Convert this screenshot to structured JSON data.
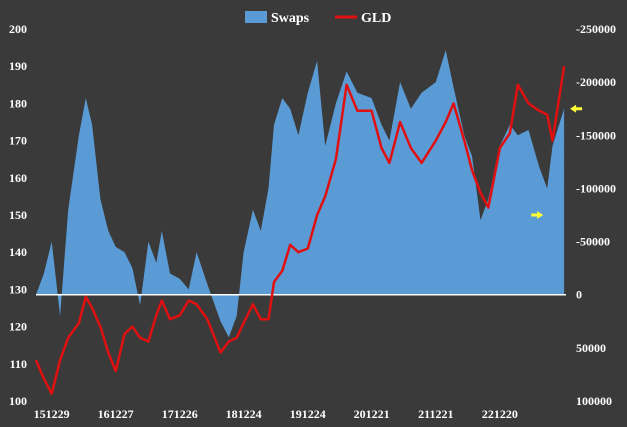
{
  "chart_data": {
    "type": "area",
    "legend_position": "top-center",
    "grid": false,
    "background_color": "#3a3a3a",
    "series": [
      {
        "name": "Swaps",
        "kind": "area",
        "axis": "right",
        "color": "#5b9bd5",
        "points": [
          [
            "2015-10-01",
            0
          ],
          [
            "2015-11-15",
            -20000
          ],
          [
            "2015-12-29",
            -50000
          ],
          [
            "2016-02-15",
            20000
          ],
          [
            "2016-04-01",
            -80000
          ],
          [
            "2016-06-01",
            -150000
          ],
          [
            "2016-07-10",
            -185000
          ],
          [
            "2016-08-15",
            -160000
          ],
          [
            "2016-10-01",
            -90000
          ],
          [
            "2016-11-15",
            -60000
          ],
          [
            "2016-12-27",
            -45000
          ],
          [
            "2017-02-15",
            -40000
          ],
          [
            "2017-04-01",
            -25000
          ],
          [
            "2017-05-15",
            10000
          ],
          [
            "2017-07-01",
            -50000
          ],
          [
            "2017-08-15",
            -30000
          ],
          [
            "2017-09-15",
            -60000
          ],
          [
            "2017-11-01",
            -20000
          ],
          [
            "2017-12-26",
            -15000
          ],
          [
            "2018-02-15",
            -5000
          ],
          [
            "2018-04-01",
            -40000
          ],
          [
            "2018-06-01",
            -10000
          ],
          [
            "2018-08-15",
            25000
          ],
          [
            "2018-10-01",
            40000
          ],
          [
            "2018-11-15",
            20000
          ],
          [
            "2018-12-24",
            -40000
          ],
          [
            "2019-02-15",
            -80000
          ],
          [
            "2019-04-01",
            -60000
          ],
          [
            "2019-05-15",
            -100000
          ],
          [
            "2019-06-15",
            -160000
          ],
          [
            "2019-08-01",
            -185000
          ],
          [
            "2019-09-15",
            -175000
          ],
          [
            "2019-11-01",
            -150000
          ],
          [
            "2019-12-24",
            -190000
          ],
          [
            "2020-02-15",
            -220000
          ],
          [
            "2020-04-01",
            -140000
          ],
          [
            "2020-06-01",
            -180000
          ],
          [
            "2020-08-01",
            -210000
          ],
          [
            "2020-10-01",
            -190000
          ],
          [
            "2020-12-21",
            -185000
          ],
          [
            "2021-02-15",
            -160000
          ],
          [
            "2021-04-01",
            -145000
          ],
          [
            "2021-06-01",
            -200000
          ],
          [
            "2021-08-01",
            -175000
          ],
          [
            "2021-10-01",
            -190000
          ],
          [
            "2021-12-21",
            -200000
          ],
          [
            "2022-02-15",
            -230000
          ],
          [
            "2022-04-01",
            -195000
          ],
          [
            "2022-06-01",
            -150000
          ],
          [
            "2022-07-15",
            -130000
          ],
          [
            "2022-09-01",
            -70000
          ],
          [
            "2022-10-15",
            -90000
          ],
          [
            "2022-12-20",
            -140000
          ],
          [
            "2023-02-15",
            -160000
          ],
          [
            "2023-04-01",
            -150000
          ],
          [
            "2023-06-01",
            -155000
          ],
          [
            "2023-08-01",
            -120000
          ],
          [
            "2023-09-15",
            -100000
          ],
          [
            "2023-10-15",
            -140000
          ],
          [
            "2023-12-20",
            -175000
          ]
        ]
      },
      {
        "name": "GLD",
        "kind": "line",
        "axis": "left",
        "color": "#e01010",
        "points": [
          [
            "2015-10-01",
            111
          ],
          [
            "2015-11-15",
            106
          ],
          [
            "2015-12-29",
            102
          ],
          [
            "2016-02-15",
            111
          ],
          [
            "2016-04-01",
            117
          ],
          [
            "2016-06-01",
            121
          ],
          [
            "2016-07-10",
            128
          ],
          [
            "2016-08-15",
            125
          ],
          [
            "2016-10-01",
            120
          ],
          [
            "2016-11-15",
            113
          ],
          [
            "2016-12-27",
            108
          ],
          [
            "2017-02-15",
            118
          ],
          [
            "2017-04-01",
            120
          ],
          [
            "2017-05-15",
            117
          ],
          [
            "2017-07-01",
            116
          ],
          [
            "2017-08-15",
            123
          ],
          [
            "2017-09-15",
            127
          ],
          [
            "2017-11-01",
            122
          ],
          [
            "2017-12-26",
            123
          ],
          [
            "2018-02-15",
            127
          ],
          [
            "2018-04-01",
            126
          ],
          [
            "2018-06-01",
            122
          ],
          [
            "2018-08-15",
            113
          ],
          [
            "2018-10-01",
            116
          ],
          [
            "2018-11-15",
            117
          ],
          [
            "2018-12-24",
            121
          ],
          [
            "2019-02-15",
            126
          ],
          [
            "2019-04-01",
            122
          ],
          [
            "2019-05-15",
            122
          ],
          [
            "2019-06-15",
            132
          ],
          [
            "2019-08-01",
            135
          ],
          [
            "2019-09-15",
            142
          ],
          [
            "2019-11-01",
            140
          ],
          [
            "2019-12-24",
            141
          ],
          [
            "2020-02-15",
            150
          ],
          [
            "2020-04-01",
            155
          ],
          [
            "2020-06-01",
            165
          ],
          [
            "2020-08-01",
            185
          ],
          [
            "2020-10-01",
            178
          ],
          [
            "2020-12-21",
            178
          ],
          [
            "2021-02-15",
            168
          ],
          [
            "2021-04-01",
            164
          ],
          [
            "2021-06-01",
            175
          ],
          [
            "2021-08-01",
            168
          ],
          [
            "2021-10-01",
            164
          ],
          [
            "2021-12-21",
            170
          ],
          [
            "2022-02-15",
            175
          ],
          [
            "2022-04-01",
            180
          ],
          [
            "2022-06-01",
            170
          ],
          [
            "2022-07-15",
            162
          ],
          [
            "2022-09-01",
            156
          ],
          [
            "2022-10-15",
            152
          ],
          [
            "2022-12-20",
            168
          ],
          [
            "2023-02-15",
            172
          ],
          [
            "2023-04-01",
            185
          ],
          [
            "2023-06-01",
            180
          ],
          [
            "2023-08-01",
            178
          ],
          [
            "2023-09-15",
            177
          ],
          [
            "2023-10-15",
            170
          ],
          [
            "2023-12-20",
            190
          ]
        ]
      }
    ],
    "x_axis": {
      "type": "date",
      "range": [
        "2015-10-01",
        "2023-12-31"
      ],
      "ticks": [
        {
          "value": "2015-12-29",
          "label": "151229"
        },
        {
          "value": "2016-12-27",
          "label": "161227"
        },
        {
          "value": "2017-12-26",
          "label": "171226"
        },
        {
          "value": "2018-12-24",
          "label": "181224"
        },
        {
          "value": "2019-12-24",
          "label": "191224"
        },
        {
          "value": "2020-12-21",
          "label": "201221"
        },
        {
          "value": "2021-12-21",
          "label": "211221"
        },
        {
          "value": "2022-12-20",
          "label": "221220"
        }
      ]
    },
    "y_left": {
      "range": [
        100,
        200
      ],
      "ticks": [
        {
          "value": 100,
          "label": "100"
        },
        {
          "value": 110,
          "label": "110"
        },
        {
          "value": 120,
          "label": "120"
        },
        {
          "value": 130,
          "label": "130"
        },
        {
          "value": 140,
          "label": "140"
        },
        {
          "value": 150,
          "label": "150"
        },
        {
          "value": 160,
          "label": "160"
        },
        {
          "value": 170,
          "label": "170"
        },
        {
          "value": 180,
          "label": "180"
        },
        {
          "value": 190,
          "label": "190"
        },
        {
          "value": 200,
          "label": "200"
        }
      ]
    },
    "y_right": {
      "range": [
        100000,
        -250000
      ],
      "inverted": true,
      "ticks": [
        {
          "value": -250000,
          "label": "-250000"
        },
        {
          "value": -200000,
          "label": "-200000"
        },
        {
          "value": -150000,
          "label": "-150000"
        },
        {
          "value": -100000,
          "label": "-100000"
        },
        {
          "value": -50000,
          "label": "-50000"
        },
        {
          "value": 0,
          "label": "0"
        },
        {
          "value": 50000,
          "label": "50000"
        },
        {
          "value": 100000,
          "label": "100000"
        }
      ]
    },
    "annotations": [
      {
        "type": "arrow",
        "color": "#ffff33",
        "direction": "left",
        "near": [
          "2023-12-20",
          -175000
        ]
      },
      {
        "type": "arrow",
        "color": "#ffff33",
        "direction": "right",
        "near": [
          "2023-09-15",
          -75000
        ]
      }
    ]
  }
}
